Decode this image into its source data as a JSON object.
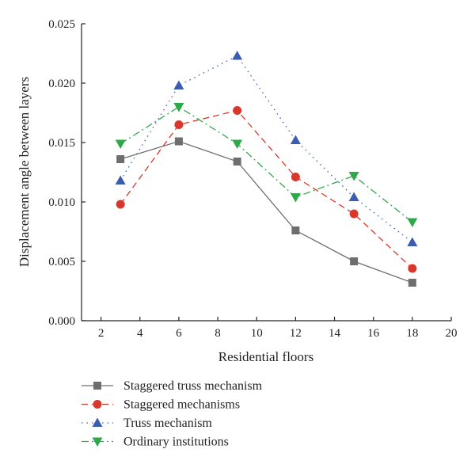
{
  "chart_data": {
    "type": "line",
    "xlabel": "Residential floors",
    "ylabel": "Displacement angle between layers",
    "xlim": [
      1,
      20
    ],
    "ylim": [
      0,
      0.025
    ],
    "xticks": [
      "2",
      "4",
      "6",
      "8",
      "10",
      "12",
      "14",
      "16",
      "18",
      "20"
    ],
    "yticks": [
      "0.000",
      "0.005",
      "0.010",
      "0.015",
      "0.020",
      "0.025"
    ],
    "grid": false,
    "legend_position": "bottom",
    "x": [
      3,
      6,
      9,
      12,
      15,
      18
    ],
    "series": [
      {
        "name": "Staggered truss mechanism",
        "values": [
          0.0136,
          0.0151,
          0.0134,
          0.0076,
          0.005,
          0.0032
        ],
        "color": "#6e6e6e",
        "marker": "square",
        "line_style": "solid"
      },
      {
        "name": "Staggered mechanisms",
        "values": [
          0.0098,
          0.0165,
          0.0177,
          0.0121,
          0.009,
          0.0044
        ],
        "color": "#d9372b",
        "marker": "circle",
        "line_style": "dashed"
      },
      {
        "name": "Truss mechanism",
        "values": [
          0.0118,
          0.0198,
          0.0223,
          0.0152,
          0.0104,
          0.0066
        ],
        "color": "#3a5db0",
        "marker": "triangle-up",
        "line_style": "dotted"
      },
      {
        "name": "Ordinary institutions",
        "values": [
          0.0149,
          0.018,
          0.0149,
          0.0104,
          0.0122,
          0.0083
        ],
        "color": "#2fa84a",
        "marker": "triangle-down",
        "line_style": "dash-dot"
      }
    ]
  }
}
